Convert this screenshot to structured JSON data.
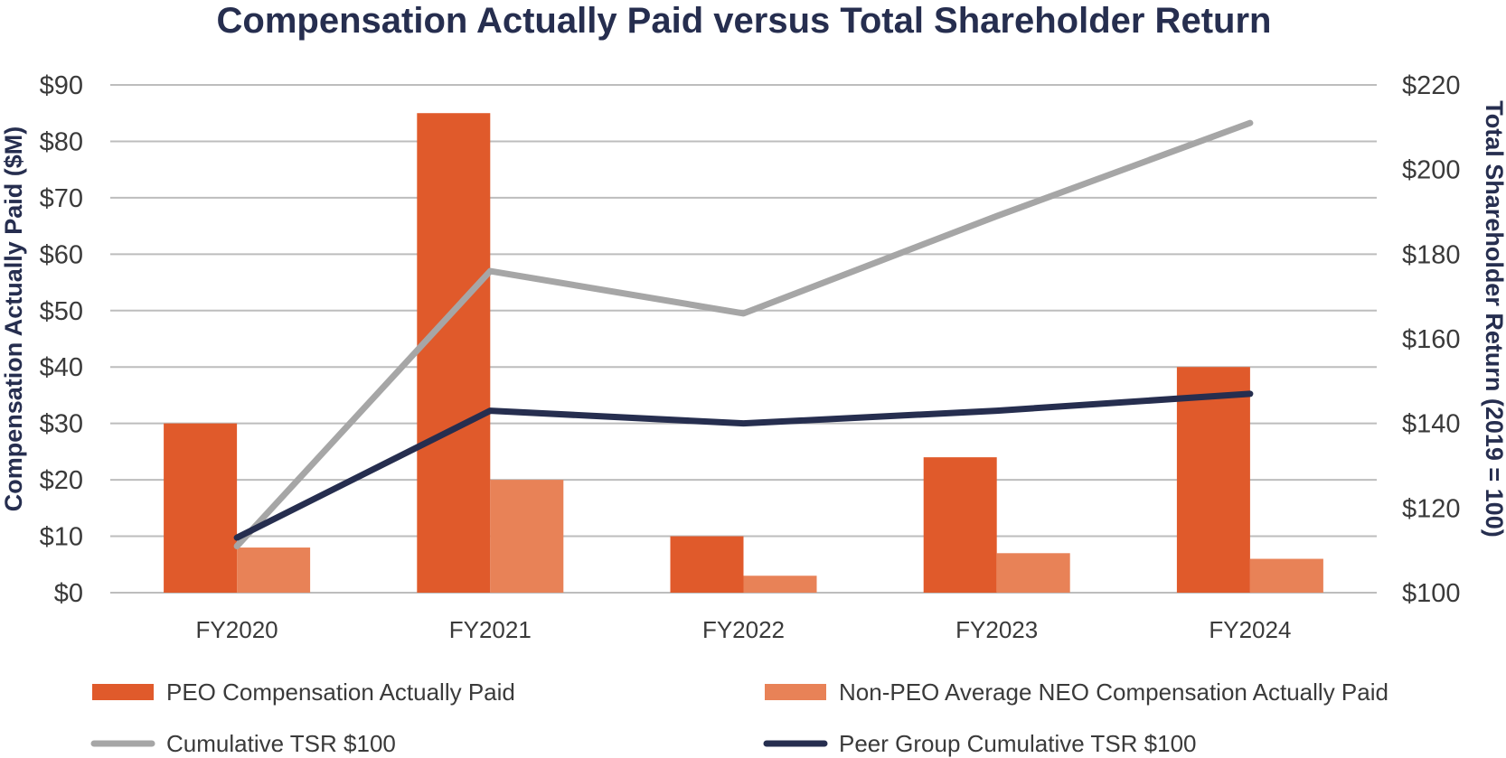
{
  "chart_data": {
    "type": "bar",
    "title": "Compensation Actually Paid versus Total Shareholder Return",
    "categories": [
      "FY2020",
      "FY2021",
      "FY2022",
      "FY2023",
      "FY2024"
    ],
    "ylabel_left": "Compensation Actually Paid ($M)",
    "ylabel_right": "Total Shareholder Return (2019 = 100)",
    "ylim_left": [
      0,
      90
    ],
    "ylim_right": [
      100,
      220
    ],
    "yticks_left": [
      "$0",
      "$10",
      "$20",
      "$30",
      "$40",
      "$50",
      "$60",
      "$70",
      "$80",
      "$90"
    ],
    "yticks_right": [
      "$100",
      "$120",
      "$140",
      "$160",
      "$180",
      "$200",
      "$220"
    ],
    "grid": true,
    "legend_position": "bottom",
    "bar_series": [
      {
        "name": "PEO Compensation Actually Paid",
        "axis": "left",
        "color": "#e05a2b",
        "values": [
          30,
          85,
          10,
          24,
          40
        ]
      },
      {
        "name": "Non-PEO Average NEO Compensation Actually Paid",
        "axis": "left",
        "color": "#e88257",
        "values": [
          8,
          20,
          3,
          7,
          6
        ]
      }
    ],
    "line_series": [
      {
        "name": "Cumulative TSR $100",
        "axis": "right",
        "color": "#a6a6a6",
        "values": [
          111,
          176,
          166,
          189,
          211
        ]
      },
      {
        "name": "Peer Group Cumulative TSR $100",
        "axis": "right",
        "color": "#262e4f",
        "values": [
          113,
          143,
          140,
          143,
          147
        ]
      }
    ]
  }
}
